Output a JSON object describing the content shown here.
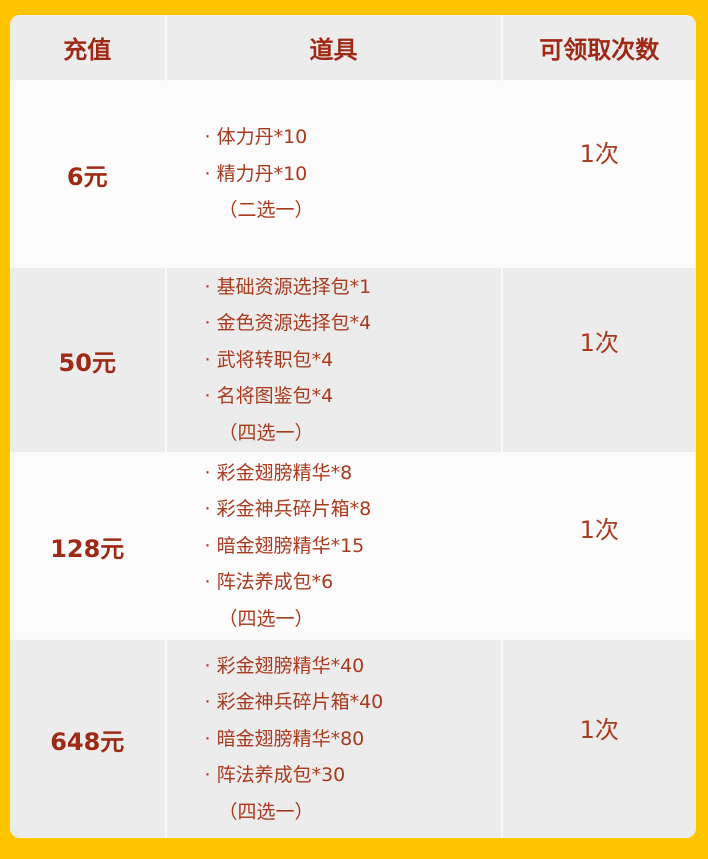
{
  "header": {
    "col1": "充值",
    "col2": "道具",
    "col3": "可领取次数"
  },
  "rows": [
    {
      "price": "6元",
      "items": [
        "· 体力丹*10",
        "· 精力丹*10"
      ],
      "note": "（二选一）",
      "count": "1次"
    },
    {
      "price": "50元",
      "items": [
        "· 基础资源选择包*1",
        "· 金色资源选择包*4",
        "· 武将转职包*4",
        "· 名将图鉴包*4"
      ],
      "note": "（四选一）",
      "count": "1次"
    },
    {
      "price": "128元",
      "items": [
        "· 彩金翅膀精华*8",
        "· 彩金神兵碎片箱*8",
        "· 暗金翅膀精华*15",
        "· 阵法养成包*6"
      ],
      "note": "（四选一）",
      "count": "1次"
    },
    {
      "price": "648元",
      "items": [
        "· 彩金翅膀精华*40",
        "· 彩金神兵碎片箱*40",
        "· 暗金翅膀精华*80",
        "· 阵法养成包*30"
      ],
      "note": "（四选一）",
      "count": "1次"
    }
  ],
  "colors": {
    "border": "#ffc600",
    "text": "#a83a1e"
  }
}
